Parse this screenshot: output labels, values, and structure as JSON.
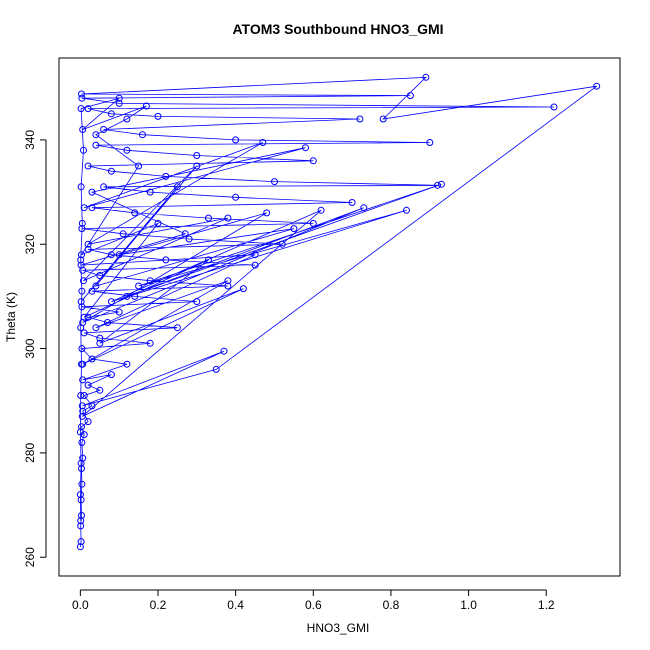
{
  "chart_data": {
    "type": "line",
    "title": "ATOM3 Southbound HNO3_GMI",
    "xlabel": "HNO3_GMI",
    "ylabel": "Theta (K)",
    "xlim": [
      -0.055,
      1.39
    ],
    "ylim": [
      256.4,
      355.7
    ],
    "x_ticks": [
      "0.0",
      "0.2",
      "0.4",
      "0.6",
      "0.8",
      "1.0",
      "1.2"
    ],
    "y_ticks": [
      "260",
      "280",
      "300",
      "320",
      "340"
    ],
    "marker": "open-circle",
    "grid": false,
    "legend": "none",
    "colors": {
      "series": "#0000ff",
      "frame": "#000000",
      "text": "#000000"
    },
    "series": [
      {
        "values": [
          [
            0.0,
            262
          ],
          [
            0.002,
            263
          ],
          [
            0.001,
            266
          ],
          [
            0.003,
            268
          ],
          [
            0.002,
            271
          ],
          [
            0.004,
            274
          ],
          [
            0.003,
            277
          ],
          [
            0.006,
            279
          ],
          [
            0.004,
            282
          ],
          [
            0.01,
            283.5
          ],
          [
            0.003,
            285
          ],
          [
            0.02,
            286
          ],
          [
            0.006,
            288
          ],
          [
            0.03,
            289
          ],
          [
            0.01,
            291
          ],
          [
            0.05,
            292
          ],
          [
            0.02,
            293
          ],
          [
            0.08,
            295
          ],
          [
            0.006,
            294
          ],
          [
            0.12,
            297
          ],
          [
            0.03,
            298
          ],
          [
            0.004,
            300
          ],
          [
            0.18,
            301
          ],
          [
            0.05,
            302
          ],
          [
            0.01,
            303
          ],
          [
            0.25,
            304
          ],
          [
            0.07,
            305
          ],
          [
            0.02,
            306
          ],
          [
            0.1,
            307
          ],
          [
            0.004,
            308
          ],
          [
            0.3,
            309
          ],
          [
            0.14,
            310
          ],
          [
            0.03,
            311
          ],
          [
            0.38,
            312
          ],
          [
            0.18,
            313
          ],
          [
            0.05,
            314
          ],
          [
            0.006,
            315
          ],
          [
            0.45,
            316
          ],
          [
            0.22,
            317
          ],
          [
            0.08,
            318
          ],
          [
            0.02,
            319
          ],
          [
            0.52,
            320
          ],
          [
            0.28,
            321
          ],
          [
            0.11,
            322
          ],
          [
            0.004,
            323
          ],
          [
            0.6,
            324
          ],
          [
            0.33,
            325
          ],
          [
            0.14,
            326
          ],
          [
            0.03,
            327
          ],
          [
            0.7,
            328
          ],
          [
            0.4,
            329
          ],
          [
            0.18,
            330
          ],
          [
            0.06,
            331
          ],
          [
            0.92,
            331.3
          ],
          [
            0.5,
            332
          ],
          [
            0.22,
            333
          ],
          [
            0.08,
            334
          ],
          [
            0.02,
            335
          ],
          [
            0.6,
            336
          ],
          [
            0.3,
            337
          ],
          [
            0.12,
            338
          ],
          [
            0.04,
            339
          ],
          [
            0.9,
            339.5
          ],
          [
            0.4,
            340
          ],
          [
            0.16,
            341
          ],
          [
            0.06,
            342
          ],
          [
            0.72,
            344
          ],
          [
            0.2,
            344.5
          ],
          [
            0.08,
            345
          ],
          [
            0.02,
            346
          ],
          [
            1.22,
            346.3
          ],
          [
            0.1,
            347
          ],
          [
            0.004,
            348
          ],
          [
            0.85,
            348.5
          ],
          [
            0.003,
            348.8
          ],
          [
            0.89,
            352
          ],
          [
            0.78,
            344
          ],
          [
            1.33,
            350.3
          ],
          [
            0.35,
            296
          ],
          [
            0.005,
            289
          ],
          [
            0.37,
            299.5
          ],
          [
            0.005,
            287
          ],
          [
            0.62,
            326.5
          ],
          [
            0.08,
            309
          ],
          [
            0.84,
            326.5
          ],
          [
            0.15,
            312
          ],
          [
            0.93,
            331.5
          ],
          [
            0.12,
            310
          ],
          [
            0.73,
            327
          ],
          [
            0.006,
            305
          ],
          [
            0.48,
            326
          ],
          [
            0.1,
            318
          ],
          [
            0.55,
            323
          ],
          [
            0.04,
            312
          ],
          [
            0.25,
            331
          ],
          [
            0.002,
            309
          ],
          [
            0.3,
            335
          ],
          [
            0.008,
            313
          ],
          [
            0.38,
            325
          ],
          [
            0.02,
            320
          ],
          [
            0.47,
            339.5
          ],
          [
            0.01,
            327
          ],
          [
            0.58,
            338.5
          ],
          [
            0.03,
            330
          ],
          [
            0.27,
            322
          ],
          [
            0.002,
            316
          ],
          [
            0.45,
            318
          ],
          [
            0.04,
            304
          ],
          [
            0.38,
            313
          ],
          [
            0.006,
            297
          ],
          [
            0.42,
            311.5
          ],
          [
            0.05,
            301
          ],
          [
            0.33,
            317
          ],
          [
            0.01,
            306
          ],
          [
            0.2,
            324
          ],
          [
            0.003,
            318
          ],
          [
            0.15,
            335
          ],
          [
            0.04,
            341
          ],
          [
            0.12,
            344
          ],
          [
            0.17,
            346.5
          ],
          [
            0.006,
            342
          ],
          [
            0.1,
            348
          ],
          [
            0.002,
            346
          ],
          [
            0.008,
            338
          ],
          [
            0.002,
            331
          ],
          [
            0.005,
            324
          ],
          [
            0.001,
            317
          ],
          [
            0.004,
            311
          ],
          [
            0.001,
            304
          ],
          [
            0.003,
            297
          ],
          [
            0.001,
            291
          ],
          [
            0.0,
            284
          ],
          [
            0.002,
            278
          ],
          [
            0.0,
            272
          ],
          [
            0.001,
            267
          ]
        ]
      }
    ]
  }
}
